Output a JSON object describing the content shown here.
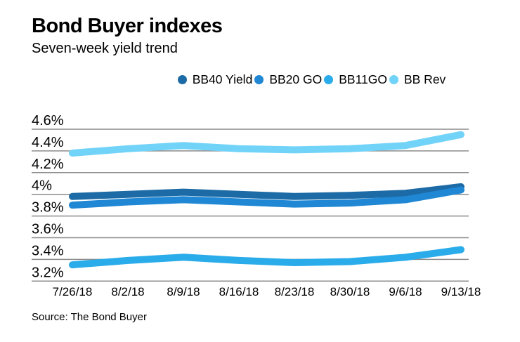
{
  "header": {
    "title": "Bond Buyer indexes",
    "subtitle": "Seven-week yield trend"
  },
  "footer": {
    "source": "Source: The Bond Buyer"
  },
  "colors": {
    "grid": "#8c8c8c",
    "text": "#000000"
  },
  "chart_data": {
    "type": "line",
    "title": "Bond Buyer indexes",
    "subtitle": "Seven-week yield trend",
    "source": "Source: The Bond Buyer",
    "categories": [
      "7/26/18",
      "8/2/18",
      "8/9/18",
      "8/16/18",
      "8/23/18",
      "8/30/18",
      "9/6/18",
      "9/13/18"
    ],
    "series": [
      {
        "name": "BB40 Yield",
        "color": "#1d6ba6",
        "values": [
          3.98,
          4.0,
          4.02,
          4.0,
          3.98,
          3.99,
          4.01,
          4.07
        ]
      },
      {
        "name": "BB20 GO",
        "color": "#1f87d4",
        "values": [
          3.9,
          3.93,
          3.95,
          3.93,
          3.91,
          3.92,
          3.95,
          4.04
        ]
      },
      {
        "name": "BB11GO",
        "color": "#2bacea",
        "values": [
          3.35,
          3.39,
          3.42,
          3.39,
          3.37,
          3.38,
          3.42,
          3.49
        ]
      },
      {
        "name": "BB Rev",
        "color": "#72d3f8",
        "values": [
          4.38,
          4.42,
          4.45,
          4.42,
          4.41,
          4.42,
          4.45,
          4.55
        ]
      }
    ],
    "y_ticks": [
      {
        "label": "4.6%",
        "value": 4.6
      },
      {
        "label": "4.4%",
        "value": 4.4
      },
      {
        "label": "4.2%",
        "value": 4.2
      },
      {
        "label": "4%",
        "value": 4.0
      },
      {
        "label": "3.8%",
        "value": 3.8
      },
      {
        "label": "3.6%",
        "value": 3.6
      },
      {
        "label": "3.4%",
        "value": 3.4
      },
      {
        "label": "3.2%",
        "value": 3.2
      }
    ],
    "ylim": [
      3.2,
      4.6
    ],
    "unit": "%",
    "grid": true,
    "legend_position": "top"
  }
}
